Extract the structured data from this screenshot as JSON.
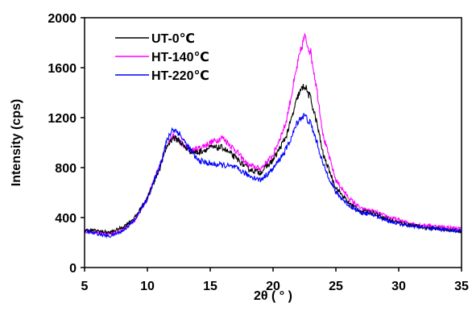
{
  "chart_data": {
    "type": "line",
    "title": "",
    "xlabel": "2θ ( ° )",
    "ylabel": "Intensity (cps)",
    "xlim": [
      5,
      35
    ],
    "ylim": [
      0,
      2000
    ],
    "xticks": [
      "5",
      "10",
      "15",
      "20",
      "25",
      "30",
      "35"
    ],
    "yticks": [
      "0",
      "400",
      "800",
      "1200",
      "1600",
      "2000"
    ],
    "grid": false,
    "legend_position": "top-left",
    "series": [
      {
        "name": "UT-0℃",
        "color": "#000000",
        "x": [
          5,
          6,
          7,
          8,
          9,
          10,
          11,
          11.5,
          12,
          12.5,
          13,
          13.5,
          14,
          15,
          16,
          17,
          18,
          19,
          20,
          21,
          21.5,
          22,
          22.5,
          23,
          23.5,
          24,
          25,
          26,
          27,
          28,
          29,
          30,
          31,
          32,
          33,
          34,
          35
        ],
        "values": [
          300,
          295,
          280,
          320,
          400,
          560,
          800,
          960,
          1040,
          1020,
          960,
          930,
          920,
          960,
          960,
          880,
          790,
          760,
          860,
          1040,
          1200,
          1380,
          1460,
          1350,
          1150,
          900,
          640,
          520,
          450,
          440,
          390,
          360,
          340,
          320,
          310,
          300,
          290
        ]
      },
      {
        "name": "HT-140℃",
        "color": "#ff00ff",
        "x": [
          5,
          6,
          7,
          8,
          9,
          10,
          11,
          11.5,
          12,
          12.5,
          13,
          13.5,
          14,
          15,
          16,
          17,
          18,
          19,
          20,
          21,
          21.5,
          22,
          22.5,
          23,
          23.5,
          24,
          25,
          26,
          27,
          28,
          29,
          30,
          31,
          32,
          33,
          34,
          35
        ],
        "values": [
          290,
          280,
          270,
          300,
          380,
          560,
          820,
          980,
          1050,
          1020,
          960,
          940,
          950,
          1000,
          1040,
          940,
          820,
          790,
          900,
          1150,
          1400,
          1650,
          1850,
          1720,
          1420,
          1050,
          700,
          560,
          470,
          450,
          410,
          380,
          350,
          340,
          330,
          320,
          310
        ]
      },
      {
        "name": "HT-220℃",
        "color": "#0000ff",
        "x": [
          5,
          6,
          7,
          8,
          9,
          10,
          11,
          11.5,
          12,
          12.5,
          13,
          13.5,
          14,
          15,
          16,
          17,
          18,
          19,
          20,
          21,
          21.5,
          22,
          22.5,
          23,
          23.5,
          24,
          25,
          26,
          27,
          28,
          29,
          30,
          31,
          32,
          33,
          34,
          35
        ],
        "values": [
          290,
          270,
          250,
          290,
          380,
          550,
          820,
          1000,
          1110,
          1080,
          1000,
          930,
          860,
          830,
          820,
          800,
          740,
          700,
          790,
          940,
          1050,
          1180,
          1220,
          1150,
          1000,
          820,
          600,
          500,
          440,
          420,
          380,
          350,
          330,
          320,
          310,
          300,
          290
        ]
      }
    ]
  }
}
